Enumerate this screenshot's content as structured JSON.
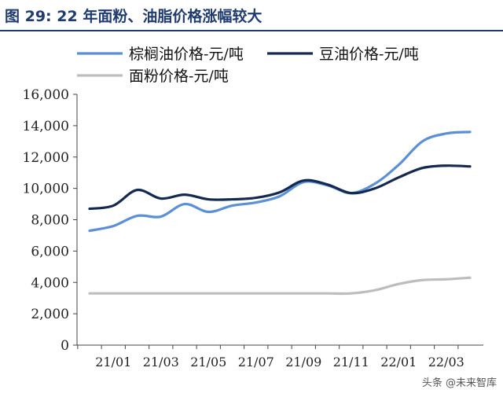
{
  "figure": {
    "title": "图 29:  22 年面粉、油脂价格涨幅较大",
    "watermark": "头条 @未来智库"
  },
  "colors": {
    "title": "#1f3b6f",
    "palm": "#5b8fd6",
    "soy": "#13294f",
    "flour": "#bdbdbd",
    "axis": "#444444"
  },
  "chart_data": {
    "type": "line",
    "x": [
      "2020-12",
      "2021-01",
      "2021-02",
      "2021-03",
      "2021-04",
      "2021-05",
      "2021-06",
      "2021-07",
      "2021-08",
      "2021-09",
      "2021-10",
      "2021-11",
      "2021-12",
      "2022-01",
      "2022-02",
      "2022-03",
      "2022-04"
    ],
    "x_tick_labels": [
      "21/01",
      "21/03",
      "21/05",
      "21/07",
      "21/09",
      "21/11",
      "22/01",
      "22/03"
    ],
    "x_tick_values": [
      "2021-01",
      "2021-03",
      "2021-05",
      "2021-07",
      "2021-09",
      "2021-11",
      "2022-01",
      "2022-03"
    ],
    "ylim": [
      0,
      16000
    ],
    "y_ticks": [
      0,
      2000,
      4000,
      6000,
      8000,
      10000,
      12000,
      14000,
      16000
    ],
    "y_tick_labels": [
      "0",
      "2,000",
      "4,000",
      "6,000",
      "8,000",
      "10,000",
      "12,000",
      "14,000",
      "16,000"
    ],
    "grid": false,
    "legend_position": "top-left",
    "series": [
      {
        "name": "棕榈油价格-元/吨",
        "color_key": "palm",
        "values": [
          7300,
          7600,
          8250,
          8200,
          9000,
          8500,
          8900,
          9100,
          9500,
          10400,
          10200,
          9700,
          10300,
          11500,
          13000,
          13500,
          13600
        ]
      },
      {
        "name": "豆油价格-元/吨",
        "color_key": "soy",
        "values": [
          8700,
          8900,
          9900,
          9350,
          9600,
          9300,
          9300,
          9400,
          9750,
          10500,
          10250,
          9700,
          10000,
          10700,
          11300,
          11450,
          11400
        ]
      },
      {
        "name": "面粉价格-元/吨",
        "color_key": "flour",
        "values": [
          3300,
          3300,
          3300,
          3300,
          3300,
          3300,
          3300,
          3300,
          3300,
          3300,
          3300,
          3300,
          3500,
          3900,
          4150,
          4200,
          4300
        ]
      }
    ]
  }
}
